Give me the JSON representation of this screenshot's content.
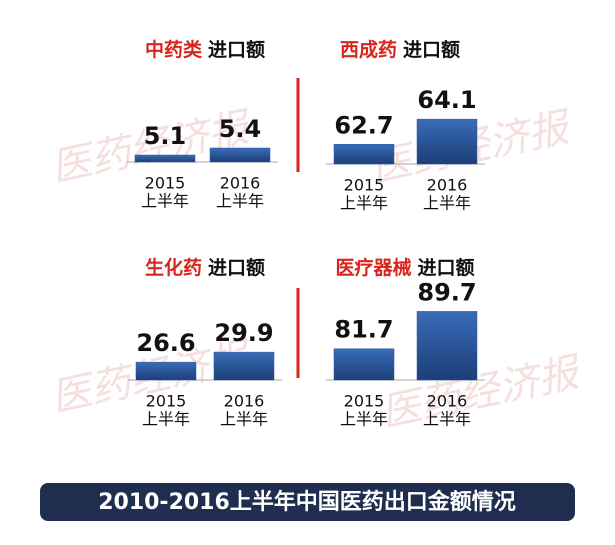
{
  "chart_data": [
    {
      "type": "bar",
      "title": "中药类",
      "measure": "进口额",
      "title_color": "#d9261c",
      "categories": [
        [
          "2015",
          "上半年"
        ],
        [
          "2016",
          "上半年"
        ]
      ],
      "values": [
        5.1,
        5.4
      ],
      "color": "#2b5a9e",
      "ylim": [
        4.8,
        7.8
      ]
    },
    {
      "type": "bar",
      "title": "西成药",
      "measure": "进口额",
      "title_color": "#d9261c",
      "categories": [
        [
          "2015",
          "上半年"
        ],
        [
          "2016",
          "上半年"
        ]
      ],
      "values": [
        62.7,
        64.1
      ],
      "color": "#2b5a9e",
      "ylim": [
        61.6,
        65.5
      ]
    },
    {
      "type": "bar",
      "title": "生化药",
      "measure": "进口额",
      "title_color": "#d9261c",
      "categories": [
        [
          "2015",
          "上半年"
        ],
        [
          "2016",
          "上半年"
        ]
      ],
      "values": [
        26.6,
        29.9
      ],
      "color": "#2b5a9e",
      "ylim": [
        20.7,
        43.8
      ]
    },
    {
      "type": "bar",
      "title": "医疗器械",
      "measure": "进口额",
      "title_color": "#d9261c",
      "categories": [
        [
          "2015",
          "上半年"
        ],
        [
          "2016",
          "上半年"
        ]
      ],
      "values": [
        81.7,
        89.7
      ],
      "color": "#2b5a9e",
      "ylim": [
        75,
        90
      ]
    }
  ],
  "banner": "2010-2016上半年中国医药出口金额情况",
  "watermark": "医药经济报"
}
